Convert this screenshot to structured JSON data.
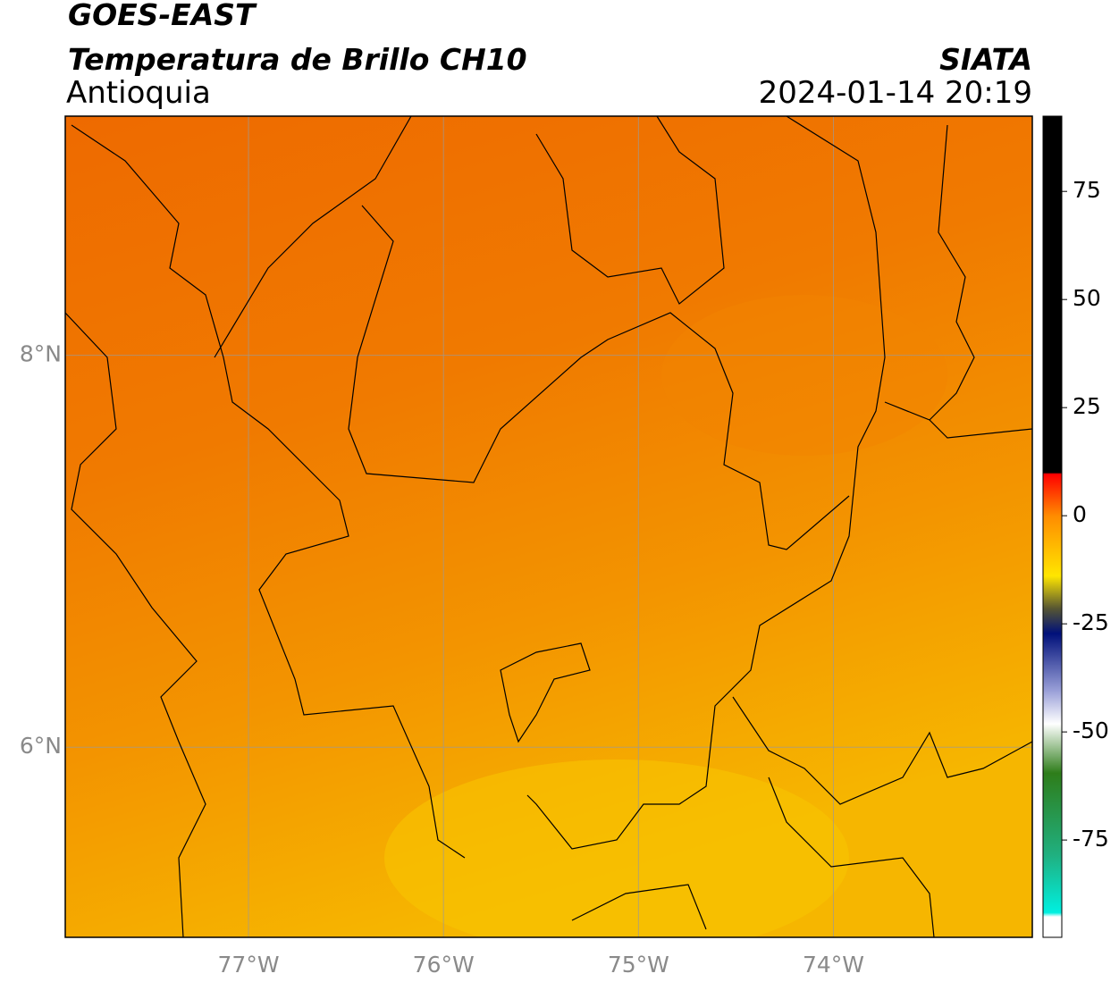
{
  "header": {
    "title": "GOES-EAST",
    "subtitle": "Temperatura de Brillo CH10",
    "region": "Antioquia",
    "source": "SIATA",
    "datetime": "2024-01-14 20:19"
  },
  "map": {
    "xlim": [
      -77.94,
      -72.98
    ],
    "ylim": [
      5.03,
      9.22
    ],
    "xticks": [
      {
        "value": -77,
        "label": "77°W"
      },
      {
        "value": -76,
        "label": "76°W"
      },
      {
        "value": -75,
        "label": "75°W"
      },
      {
        "value": -74,
        "label": "74°W"
      }
    ],
    "yticks": [
      {
        "value": 8,
        "label": "8°N"
      },
      {
        "value": 6,
        "label": "6°N"
      }
    ],
    "grid": true
  },
  "colorbar": {
    "lim": [
      -97.5,
      92.4
    ],
    "ticks": [
      75,
      50,
      25,
      0,
      -25,
      -50,
      -75
    ]
  }
}
